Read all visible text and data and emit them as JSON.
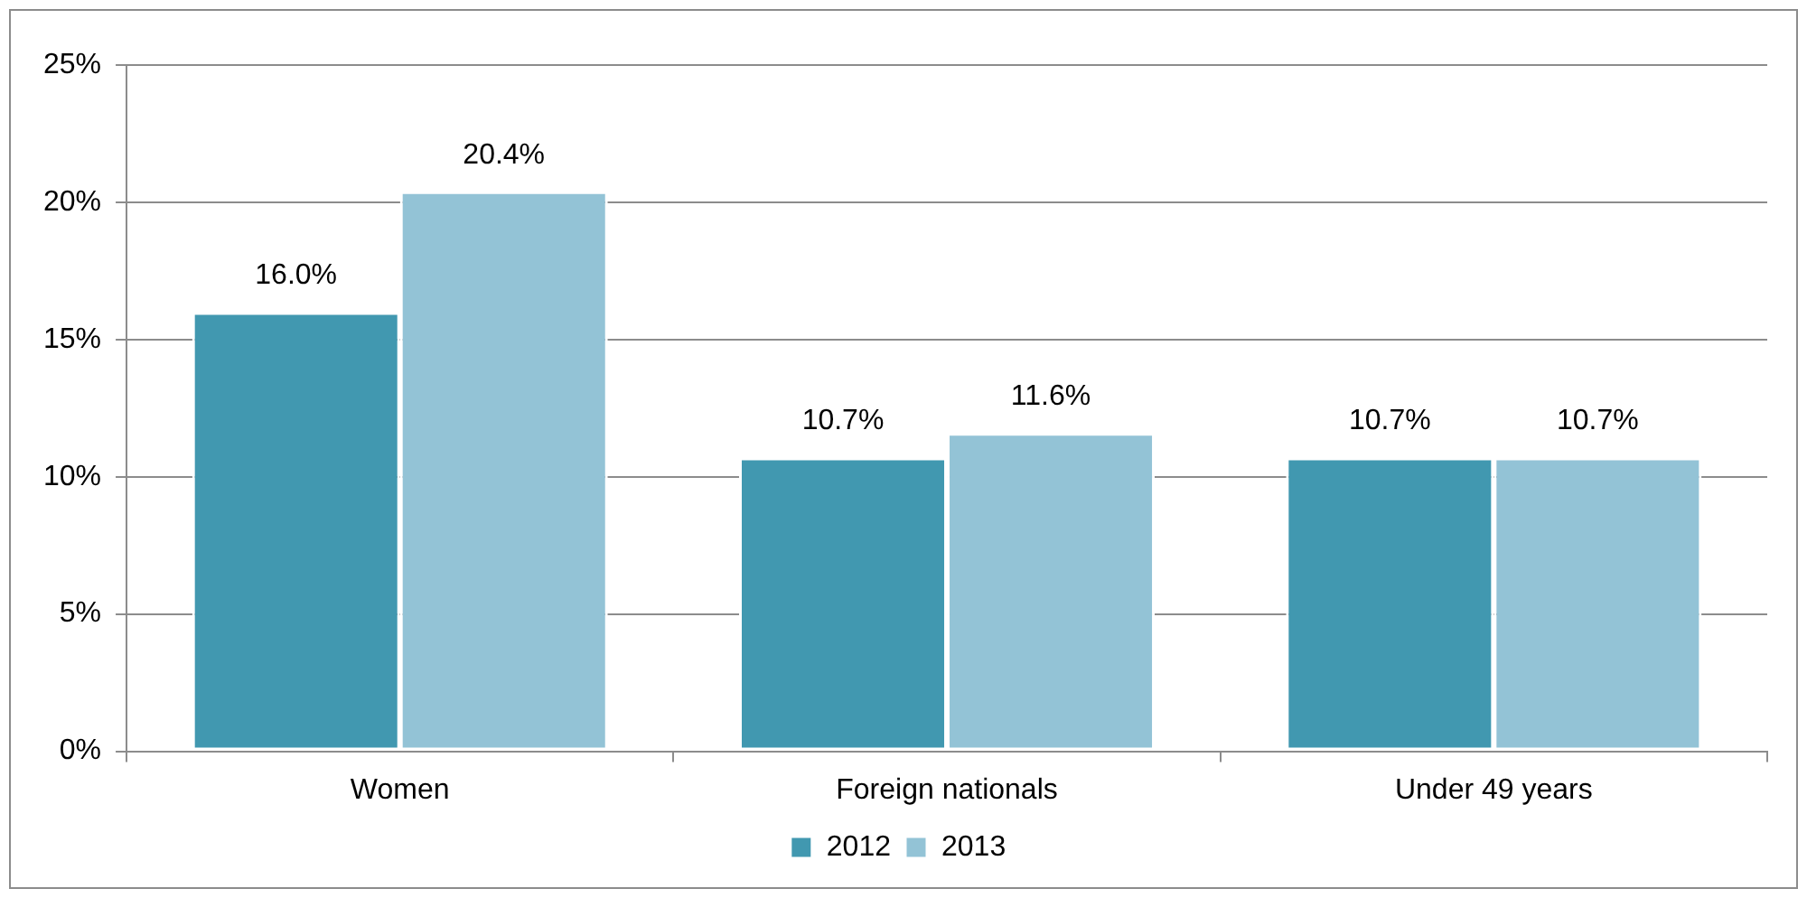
{
  "chart_data": {
    "type": "bar",
    "categories": [
      "Women",
      "Foreign nationals",
      "Under 49 years"
    ],
    "series": [
      {
        "name": "2012",
        "color": "#4198b0",
        "values": [
          16.0,
          10.7,
          10.7
        ],
        "value_labels": [
          "16.0%",
          "10.7%",
          "10.7%"
        ]
      },
      {
        "name": "2013",
        "color": "#93c3d6",
        "values": [
          20.4,
          11.6,
          10.7
        ],
        "value_labels": [
          "20.4%",
          "11.6%",
          "10.7%"
        ]
      }
    ],
    "ylim": [
      0,
      25
    ],
    "yticks": [
      {
        "value": 0,
        "label": "0%"
      },
      {
        "value": 5,
        "label": "5%"
      },
      {
        "value": 10,
        "label": "10%"
      },
      {
        "value": 15,
        "label": "15%"
      },
      {
        "value": 20,
        "label": "20%"
      },
      {
        "value": 25,
        "label": "25%"
      }
    ],
    "grid": "y",
    "legend": "bottom"
  }
}
